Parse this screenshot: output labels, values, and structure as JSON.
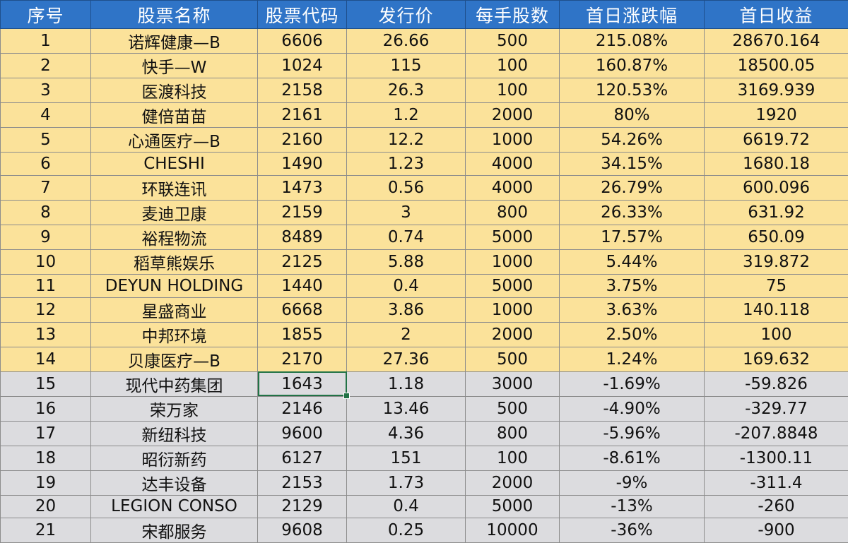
{
  "headers": [
    "序号",
    "股票名称",
    "股票代码",
    "发行价",
    "每手股数",
    "首日涨跌幅",
    "首日收益"
  ],
  "rows": [
    {
      "cells": [
        "1",
        "诺辉健康—B",
        "6606",
        "26.66",
        "500",
        "215.08%",
        "28670.164"
      ],
      "type": "pos"
    },
    {
      "cells": [
        "2",
        "快手—W",
        "1024",
        "115",
        "100",
        "160.87%",
        "18500.05"
      ],
      "type": "pos"
    },
    {
      "cells": [
        "3",
        "医渡科技",
        "2158",
        "26.3",
        "100",
        "120.53%",
        "3169.939"
      ],
      "type": "pos"
    },
    {
      "cells": [
        "4",
        "健倍苗苗",
        "2161",
        "1.2",
        "2000",
        "80%",
        "1920"
      ],
      "type": "pos"
    },
    {
      "cells": [
        "5",
        "心通医疗—B",
        "2160",
        "12.2",
        "1000",
        "54.26%",
        "6619.72"
      ],
      "type": "pos"
    },
    {
      "cells": [
        "6",
        "CHESHI",
        "1490",
        "1.23",
        "4000",
        "34.15%",
        "1680.18"
      ],
      "type": "pos"
    },
    {
      "cells": [
        "7",
        "环联连讯",
        "1473",
        "0.56",
        "4000",
        "26.79%",
        "600.096"
      ],
      "type": "pos"
    },
    {
      "cells": [
        "8",
        "麦迪卫康",
        "2159",
        "3",
        "800",
        "26.33%",
        "631.92"
      ],
      "type": "pos"
    },
    {
      "cells": [
        "9",
        "裕程物流",
        "8489",
        "0.74",
        "5000",
        "17.57%",
        "650.09"
      ],
      "type": "pos"
    },
    {
      "cells": [
        "10",
        "稻草熊娱乐",
        "2125",
        "5.88",
        "1000",
        "5.44%",
        "319.872"
      ],
      "type": "pos"
    },
    {
      "cells": [
        "11",
        "DEYUN HOLDING",
        "1440",
        "0.4",
        "5000",
        "3.75%",
        "75"
      ],
      "type": "pos"
    },
    {
      "cells": [
        "12",
        "星盛商业",
        "6668",
        "3.86",
        "1000",
        "3.63%",
        "140.118"
      ],
      "type": "pos"
    },
    {
      "cells": [
        "13",
        "中邦环境",
        "1855",
        "2",
        "2000",
        "2.50%",
        "100"
      ],
      "type": "pos"
    },
    {
      "cells": [
        "14",
        "贝康医疗—B",
        "2170",
        "27.36",
        "500",
        "1.24%",
        "169.632"
      ],
      "type": "pos"
    },
    {
      "cells": [
        "15",
        "现代中药集团",
        "1643",
        "1.18",
        "3000",
        "-1.69%",
        "-59.826"
      ],
      "type": "neg"
    },
    {
      "cells": [
        "16",
        "荣万家",
        "2146",
        "13.46",
        "500",
        "-4.90%",
        "-329.77"
      ],
      "type": "neg"
    },
    {
      "cells": [
        "17",
        "新纽科技",
        "9600",
        "4.36",
        "800",
        "-5.96%",
        "-207.8848"
      ],
      "type": "neg"
    },
    {
      "cells": [
        "18",
        "昭衍新药",
        "6127",
        "151",
        "100",
        "-8.61%",
        "-1300.11"
      ],
      "type": "neg"
    },
    {
      "cells": [
        "19",
        "达丰设备",
        "2153",
        "1.73",
        "2000",
        "-9%",
        "-311.4"
      ],
      "type": "neg"
    },
    {
      "cells": [
        "20",
        "LEGION CONSO",
        "2129",
        "0.4",
        "5000",
        "-13%",
        "-260"
      ],
      "type": "neg"
    },
    {
      "cells": [
        "21",
        "宋都服务",
        "9608",
        "0.25",
        "10000",
        "-36%",
        "-900"
      ],
      "type": "neg"
    }
  ],
  "selected_cell": {
    "row": 14,
    "col": 2
  },
  "colors": {
    "header_bg": "#2f74c7",
    "header_text": "#ffffff",
    "positive_row_bg": "#fbe29a",
    "negative_row_bg": "#dcdcdf",
    "selection": "#217346"
  }
}
